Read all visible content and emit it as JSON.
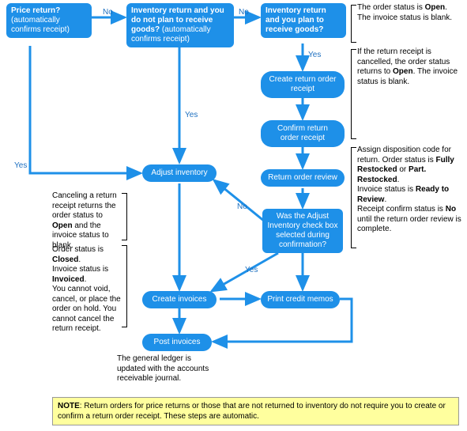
{
  "colors": {
    "node_bg": "#1e90e8",
    "node_text": "#ffffff",
    "arrow": "#1e90e8",
    "bracket": "#000000",
    "note_bg": "#ffff9e",
    "note_border": "#999999",
    "edge_label": "#1e70c0"
  },
  "nodes": {
    "price_return": "Price return?",
    "price_return_sub": "(automatically confirms receipt)",
    "inv_noplan": "Inventory return and you do not plan to receive goods?",
    "inv_noplan_sub": "(automatically confirms receipt)",
    "inv_plan": "Inventory return and you plan to receive goods?",
    "create_receipt": "Create return order receipt",
    "confirm_receipt": "Confirm return order receipt",
    "return_review": "Return order review",
    "adjust_check": "Was the Adjust Inventory check box selected during confirmation?",
    "adjust_inventory": "Adjust inventory",
    "create_invoices": "Create invoices",
    "print_memos": "Print credit memos",
    "post_invoices": "Post invoices"
  },
  "edge_labels": {
    "no1": "No",
    "no2": "No",
    "yes1": "Yes",
    "yes_vert": "Yes",
    "yes_top": "Yes",
    "yes_diag": "Yes",
    "no_diag": "No"
  },
  "annotations": {
    "top_right_1": "The order status is <b>Open</b>. The invoice status is blank.",
    "top_right_2": "If the return receipt is cancelled, the order status returns to <b>Open</b>. The invoice status is blank.",
    "mid_right": "Assign disposition code for return. Order status is <b>Fully Restocked</b> or <b>Part. Restocked</b>.<br>Invoice status is <b>Ready to Review</b>.<br>Receipt confirm status is <b>No</b> until the return order review is complete.",
    "mid_left_1": "Canceling a return receipt returns the order status to <b>Open</b> and the invoice status to blank.",
    "mid_left_2": "Order status is <b>Closed</b>.<br>Invoice status is <b>Invoiced</b>.<br>You cannot void, cancel, or place the order on hold. You cannot cancel the return receipt.",
    "bottom_left": "The general ledger is updated with the accounts receivable journal."
  },
  "note": "<b>NOTE</b>: Return orders for price returns or those that are not returned to inventory do not require you to create or confirm a return order receipt. These steps are automatic."
}
